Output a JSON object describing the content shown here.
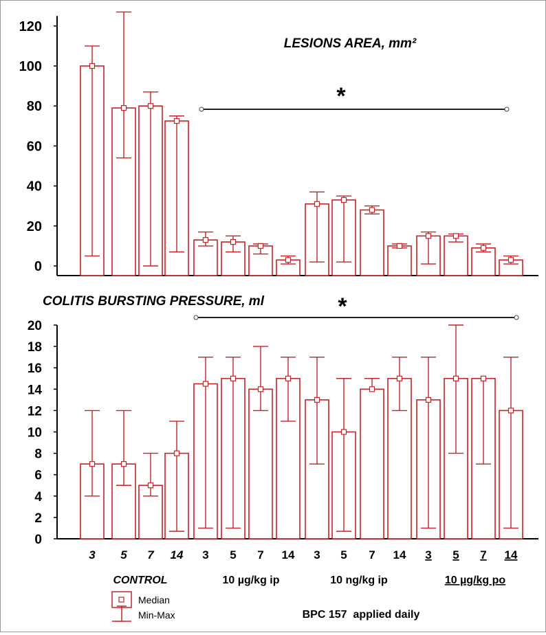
{
  "chart_data": [
    {
      "type": "bar",
      "title": "LESIONS AREA, mm²",
      "xlabel": "",
      "ylabel": "",
      "ylim": [
        -5,
        125
      ],
      "yticks": [
        0,
        20,
        40,
        60,
        80,
        100,
        120
      ],
      "grid": false,
      "colors": {
        "stroke": "#c42228",
        "bar_fill": "#ffffff",
        "axis": "#000000"
      },
      "annotation": "*",
      "significance_span": [
        "3",
        "14"
      ],
      "categories": [
        "3",
        "5",
        "7",
        "14",
        "3",
        "5",
        "7",
        "14",
        "3",
        "5",
        "7",
        "14",
        "3",
        "5",
        "7",
        "14"
      ],
      "series": [
        {
          "name": "Median",
          "values": [
            100,
            79,
            80,
            72.5,
            13,
            12,
            10,
            3,
            31,
            33,
            28,
            10,
            15,
            15,
            9,
            3
          ]
        },
        {
          "name": "Min-Max",
          "min": [
            5,
            54,
            0,
            7,
            10,
            7,
            6,
            1,
            2,
            2,
            26,
            9,
            1,
            12,
            7,
            1
          ],
          "max": [
            110,
            127,
            87,
            75,
            17,
            15,
            11,
            5,
            37,
            35,
            30,
            11,
            17,
            16,
            11,
            5
          ]
        }
      ]
    },
    {
      "type": "bar",
      "title": "COLITIS BURSTING PRESSURE, ml",
      "xlabel": "BPC 157  applied daily",
      "ylabel": "",
      "ylim": [
        0,
        20
      ],
      "yticks": [
        0,
        2,
        4,
        6,
        8,
        10,
        12,
        14,
        16,
        18,
        20
      ],
      "grid": false,
      "colors": {
        "stroke": "#c42228",
        "bar_fill": "#ffffff",
        "axis": "#000000"
      },
      "annotation": "*",
      "significance_span": [
        "3",
        "14"
      ],
      "categories": [
        "3",
        "5",
        "7",
        "14",
        "3",
        "5",
        "7",
        "14",
        "3",
        "5",
        "7",
        "14",
        "3",
        "5",
        "7",
        "14"
      ],
      "series": [
        {
          "name": "Median",
          "values": [
            7,
            7,
            5,
            8,
            14.5,
            15,
            14,
            15,
            13,
            10,
            14,
            15,
            13,
            15,
            15,
            12
          ]
        },
        {
          "name": "Min-Max",
          "min": [
            4,
            5,
            4,
            0.7,
            1,
            1,
            12,
            11,
            7,
            0.7,
            14,
            12,
            1,
            8,
            7,
            1
          ],
          "max": [
            12,
            12,
            8,
            11,
            17,
            17,
            18,
            17,
            17,
            15,
            15,
            17,
            17,
            20,
            15,
            17
          ]
        }
      ],
      "groups": [
        "CONTROL",
        "10 µg/kg ip",
        "10 ng/kg ip",
        "10 µg/kg po"
      ]
    }
  ],
  "legend": {
    "median_label": "Median",
    "minmax_label": "Min-Max"
  }
}
